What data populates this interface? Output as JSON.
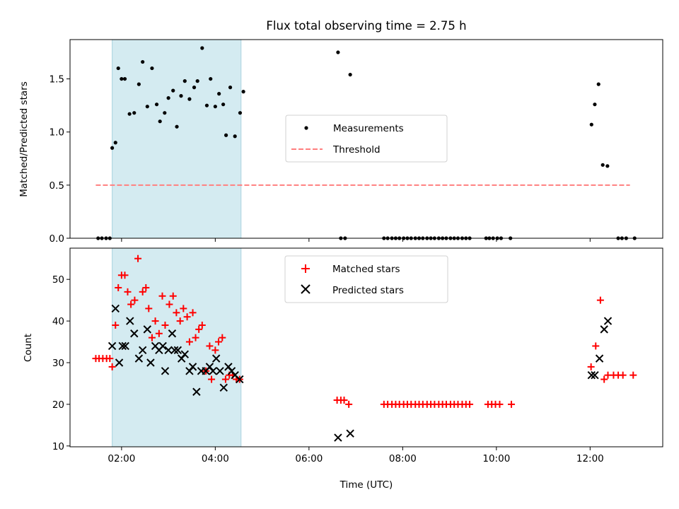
{
  "chart_data": [
    {
      "type": "scatter",
      "title": "Flux total observing time = 2.75 h",
      "xlabel": "",
      "ylabel": "Matched/Predicted stars",
      "ylim": [
        0,
        1.87
      ],
      "yticks": [
        "0.0",
        "0.5",
        "1.0",
        "1.5"
      ],
      "ytick_values": [
        0,
        0.5,
        1.0,
        1.5
      ],
      "x_unit": "hours UTC",
      "xlim": [
        0.9,
        13.55
      ],
      "legend_position": "center",
      "series": [
        {
          "name": "Measurements",
          "marker": "dot",
          "color": "#000000",
          "x": [
            1.5,
            1.58,
            1.67,
            1.75,
            1.8,
            1.87,
            1.93,
            2.0,
            2.07,
            2.17,
            2.27,
            2.37,
            2.45,
            2.55,
            2.65,
            2.75,
            2.82,
            2.92,
            3.0,
            3.1,
            3.18,
            3.27,
            3.35,
            3.45,
            3.55,
            3.62,
            3.72,
            3.82,
            3.9,
            4.0,
            4.08,
            4.17,
            4.23,
            4.32,
            4.42,
            4.53,
            4.6,
            6.62,
            6.68,
            6.77,
            6.88,
            7.6,
            7.68,
            7.77,
            7.85,
            7.93,
            8.02,
            8.1,
            8.18,
            8.27,
            8.35,
            8.43,
            8.52,
            8.6,
            8.68,
            8.77,
            8.85,
            8.93,
            9.02,
            9.1,
            9.18,
            9.27,
            9.35,
            9.43,
            9.78,
            9.85,
            9.93,
            10.02,
            10.1,
            10.3,
            12.03,
            12.1,
            12.18,
            12.27,
            12.37,
            12.6,
            12.68,
            12.77,
            12.95
          ],
          "y": [
            0,
            0,
            0,
            0,
            0.85,
            0.9,
            1.6,
            1.5,
            1.5,
            1.17,
            1.18,
            1.45,
            1.66,
            1.24,
            1.6,
            1.26,
            1.1,
            1.18,
            1.32,
            1.39,
            1.05,
            1.34,
            1.48,
            1.31,
            1.42,
            1.48,
            1.79,
            1.25,
            1.5,
            1.24,
            1.36,
            1.26,
            0.97,
            1.42,
            0.96,
            1.18,
            1.38,
            1.75,
            0,
            0,
            1.54,
            0,
            0,
            0,
            0,
            0,
            0,
            0,
            0,
            0,
            0,
            0,
            0,
            0,
            0,
            0,
            0,
            0,
            0,
            0,
            0,
            0,
            0,
            0,
            0,
            0,
            0,
            0,
            0,
            0,
            1.07,
            1.26,
            1.45,
            0.69,
            0.68,
            0,
            0,
            0,
            0
          ]
        },
        {
          "name": "Threshold",
          "marker": "dashed-line",
          "color": "#ff7f7f",
          "x": [
            1.45,
            12.85
          ],
          "y": [
            0.5,
            0.5
          ]
        }
      ],
      "shaded_span": {
        "x0": 1.8,
        "x1": 4.55,
        "color": "#d4ebf1"
      }
    },
    {
      "type": "scatter",
      "title": "",
      "xlabel": "Time (UTC)",
      "ylabel": "Count",
      "ylim": [
        9.8,
        57.5
      ],
      "yticks": [
        "10",
        "20",
        "30",
        "40",
        "50"
      ],
      "ytick_values": [
        10,
        20,
        30,
        40,
        50
      ],
      "xticks": [
        "02:00",
        "04:00",
        "06:00",
        "08:00",
        "10:00",
        "12:00"
      ],
      "xtick_values": [
        2,
        4,
        6,
        8,
        10,
        12
      ],
      "xlim": [
        0.9,
        13.55
      ],
      "legend_position": "top-center",
      "series": [
        {
          "name": "Matched stars",
          "marker": "plus",
          "color": "#ff0000",
          "x": [
            1.45,
            1.52,
            1.6,
            1.68,
            1.75,
            1.8,
            1.87,
            1.93,
            2.0,
            2.07,
            2.13,
            2.2,
            2.28,
            2.35,
            2.45,
            2.52,
            2.58,
            2.65,
            2.72,
            2.8,
            2.87,
            2.93,
            3.02,
            3.1,
            3.17,
            3.25,
            3.32,
            3.4,
            3.45,
            3.52,
            3.58,
            3.65,
            3.72,
            3.8,
            3.88,
            3.92,
            4.0,
            4.07,
            4.15,
            4.22,
            4.3,
            4.37,
            4.45,
            4.52,
            6.6,
            6.68,
            6.75,
            6.85,
            7.6,
            7.68,
            7.77,
            7.85,
            7.93,
            8.02,
            8.1,
            8.18,
            8.27,
            8.35,
            8.43,
            8.52,
            8.6,
            8.68,
            8.77,
            8.85,
            8.93,
            9.02,
            9.1,
            9.18,
            9.27,
            9.35,
            9.43,
            9.82,
            9.9,
            9.98,
            10.07,
            10.32,
            12.02,
            12.12,
            12.22,
            12.3,
            12.38,
            12.5,
            12.6,
            12.7,
            12.92
          ],
          "y": [
            31,
            31,
            31,
            31,
            31,
            29,
            39,
            48,
            51,
            51,
            47,
            44,
            45,
            55,
            47,
            48,
            43,
            36,
            40,
            37,
            46,
            39,
            44,
            46,
            42,
            40,
            43,
            41,
            35,
            42,
            36,
            38,
            39,
            28,
            34,
            26,
            33,
            35,
            36,
            26,
            27,
            27,
            26,
            26,
            21,
            21,
            21,
            20,
            20,
            20,
            20,
            20,
            20,
            20,
            20,
            20,
            20,
            20,
            20,
            20,
            20,
            20,
            20,
            20,
            20,
            20,
            20,
            20,
            20,
            20,
            20,
            20,
            20,
            20,
            20,
            20,
            29,
            34,
            45,
            26,
            27,
            27,
            27,
            27,
            27
          ]
        },
        {
          "name": "Predicted stars",
          "marker": "x",
          "color": "#000000",
          "x": [
            1.8,
            1.87,
            1.95,
            2.02,
            2.08,
            2.18,
            2.27,
            2.37,
            2.45,
            2.55,
            2.62,
            2.72,
            2.8,
            2.88,
            2.93,
            3.0,
            3.08,
            3.13,
            3.2,
            3.28,
            3.35,
            3.45,
            3.52,
            3.6,
            3.7,
            3.8,
            3.88,
            3.95,
            4.02,
            4.1,
            4.18,
            4.28,
            4.35,
            4.42,
            4.52,
            6.62,
            6.88,
            12.03,
            12.1,
            12.2,
            12.3,
            12.38
          ],
          "y": [
            34,
            43,
            30,
            34,
            34,
            40,
            37,
            31,
            33,
            38,
            30,
            34,
            33,
            34,
            28,
            33,
            37,
            33,
            33,
            31,
            32,
            28,
            29,
            23,
            28,
            28,
            29,
            28,
            31,
            28,
            24,
            29,
            28,
            27,
            26,
            12,
            13,
            27,
            27,
            31,
            38,
            40
          ]
        }
      ],
      "shaded_span": {
        "x0": 1.8,
        "x1": 4.55,
        "color": "#d4ebf1"
      }
    }
  ]
}
